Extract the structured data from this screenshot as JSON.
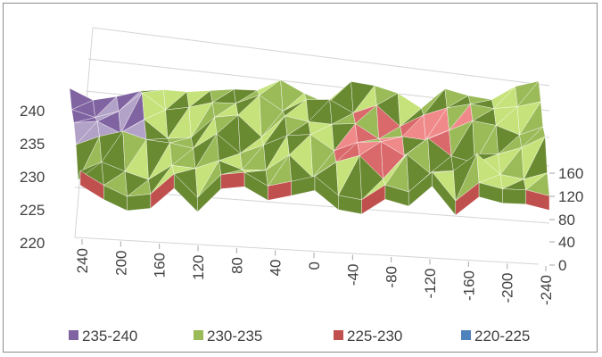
{
  "chart_data": {
    "type": "surface-3d",
    "title": "",
    "z_axis": {
      "ticks": [
        "240",
        "235",
        "230",
        "225",
        "220"
      ],
      "range": [
        220,
        240
      ]
    },
    "x_axis": {
      "ticks": [
        "240",
        "200",
        "160",
        "120",
        "80",
        "40",
        "0",
        "-40",
        "-80",
        "-120",
        "-160",
        "-200",
        "-240"
      ]
    },
    "depth_axis": {
      "ticks": [
        "160",
        "120",
        "80",
        "40",
        "0"
      ]
    },
    "legend": {
      "position": "bottom",
      "entries": [
        {
          "label": "235-240",
          "color": "#8064a2"
        },
        {
          "label": "230-235",
          "color": "#9bbb59"
        },
        {
          "label": "225-230",
          "color": "#c0504d"
        },
        {
          "label": "220-225",
          "color": "#4f81bd"
        }
      ]
    },
    "grid": true
  }
}
